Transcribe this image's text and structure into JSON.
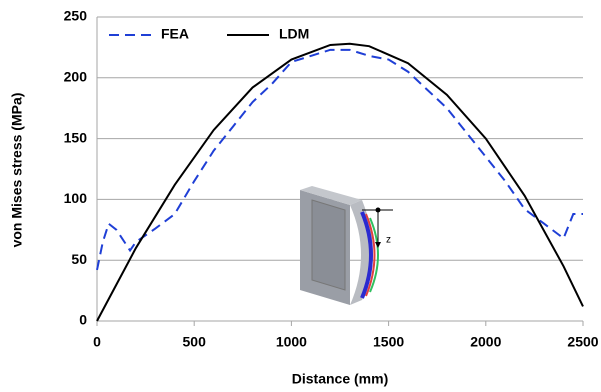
{
  "chart_data": {
    "type": "line",
    "x_label": "Distance (mm)",
    "y_label": "von Mises stress (MPa)",
    "xlim": [
      0,
      2500
    ],
    "xticks": [
      0,
      500,
      1000,
      1500,
      2000,
      2500
    ],
    "ylim": [
      0,
      250
    ],
    "yticks": [
      0,
      50,
      100,
      150,
      200,
      250
    ],
    "grid": true,
    "legend": "top-left",
    "inset_label": "z",
    "series": [
      {
        "name": "FEA",
        "color": "#1f3fd6",
        "style": "dashed",
        "x": [
          0,
          30,
          60,
          100,
          170,
          200,
          300,
          400,
          500,
          600,
          700,
          800,
          900,
          1000,
          1100,
          1200,
          1300,
          1400,
          1500,
          1600,
          1700,
          1800,
          1900,
          2000,
          2100,
          2200,
          2300,
          2400,
          2450,
          2500
        ],
        "values": [
          42,
          65,
          80,
          75,
          58,
          65,
          76,
          88,
          115,
          140,
          160,
          180,
          195,
          213,
          218,
          223,
          223,
          218,
          215,
          205,
          190,
          175,
          155,
          135,
          115,
          92,
          80,
          68,
          88,
          88
        ]
      },
      {
        "name": "LDM",
        "color": "#000000",
        "style": "solid",
        "x": [
          0,
          100,
          200,
          400,
          600,
          800,
          1000,
          1200,
          1300,
          1400,
          1600,
          1800,
          2000,
          2200,
          2400,
          2500
        ],
        "values": [
          0,
          30,
          60,
          112,
          157,
          192,
          215,
          227,
          228,
          226,
          212,
          186,
          150,
          103,
          45,
          12
        ]
      }
    ]
  }
}
